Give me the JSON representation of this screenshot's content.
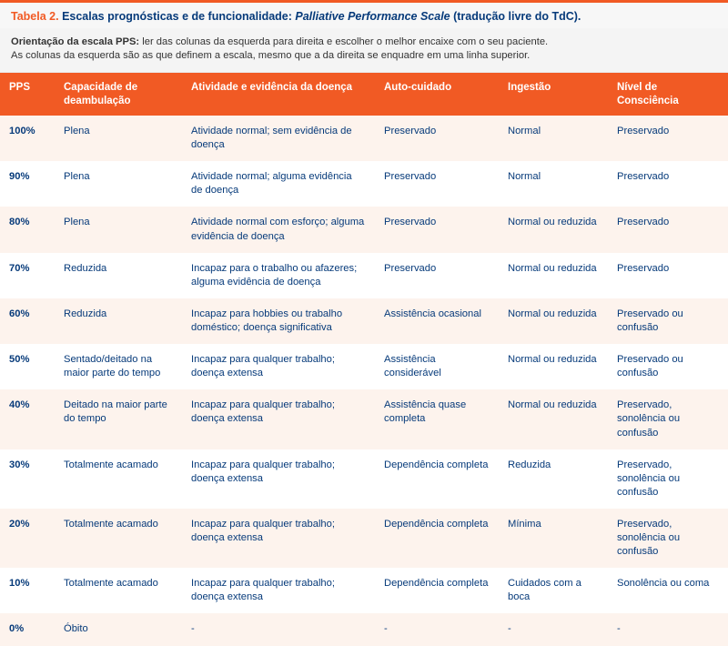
{
  "title": {
    "label": "Tabela 2.",
    "text_before_italic": "Escalas prognósticas e de funcionalidade: ",
    "italic": "Palliative Performance Scale",
    "text_after_italic": " (tradução livre do TdC)."
  },
  "note": {
    "bold": "Orientação da escala PPS:",
    "line1": " ler das colunas da esquerda para direita e escolher o melhor encaixe com o seu paciente.",
    "line2": "As colunas da esquerda são as que definem a escala, mesmo que a da direita se enquadre em uma linha superior."
  },
  "columns": [
    "PPS",
    "Capacidade de deambulação",
    "Atividade e evidência da doença",
    "Auto-cuidado",
    "Ingestão",
    "Nível de Consciência"
  ],
  "rows": [
    {
      "pps": "100%",
      "amb": "Plena",
      "act": "Atividade normal; sem evidência de doença",
      "self": "Preservado",
      "intake": "Normal",
      "consc": "Preservado"
    },
    {
      "pps": "90%",
      "amb": "Plena",
      "act": "Atividade normal; alguma evidência de doença",
      "self": "Preservado",
      "intake": "Normal",
      "consc": "Preservado"
    },
    {
      "pps": "80%",
      "amb": "Plena",
      "act": "Atividade normal com esforço; alguma evidência de doença",
      "self": "Preservado",
      "intake": "Normal ou reduzida",
      "consc": "Preservado"
    },
    {
      "pps": "70%",
      "amb": "Reduzida",
      "act": "Incapaz para o trabalho ou afazeres; alguma evidência de doença",
      "self": "Preservado",
      "intake": "Normal ou reduzida",
      "consc": "Preservado"
    },
    {
      "pps": "60%",
      "amb": "Reduzida",
      "act": "Incapaz para hobbies ou trabalho doméstico; doença significativa",
      "self": "Assistência ocasional",
      "intake": "Normal ou reduzida",
      "consc": "Preservado ou confusão"
    },
    {
      "pps": "50%",
      "amb": "Sentado/deitado na maior parte do tempo",
      "act": "Incapaz para qualquer trabalho; doença extensa",
      "self": "Assistência considerável",
      "intake": "Normal ou reduzida",
      "consc": "Preservado ou confusão"
    },
    {
      "pps": "40%",
      "amb": "Deitado na maior parte do tempo",
      "act": "Incapaz para qualquer trabalho; doença extensa",
      "self": "Assistência quase completa",
      "intake": "Normal ou reduzida",
      "consc": "Preservado, sonolência ou confusão"
    },
    {
      "pps": "30%",
      "amb": "Totalmente acamado",
      "act": "Incapaz para qualquer trabalho; doença extensa",
      "self": "Dependência completa",
      "intake": "Reduzida",
      "consc": "Preservado, sonolência ou confusão"
    },
    {
      "pps": "20%",
      "amb": "Totalmente acamado",
      "act": "Incapaz para qualquer trabalho; doença extensa",
      "self": "Dependência completa",
      "intake": "Mínima",
      "consc": "Preservado, sonolência ou confusão"
    },
    {
      "pps": "10%",
      "amb": "Totalmente acamado",
      "act": "Incapaz para qualquer trabalho; doença extensa",
      "self": "Dependência completa",
      "intake": "Cuidados com a boca",
      "consc": "Sonolência ou coma"
    },
    {
      "pps": "0%",
      "amb": "Óbito",
      "act": "-",
      "self": "-",
      "intake": "-",
      "consc": "-"
    }
  ],
  "colors": {
    "accent": "#f15a24",
    "text_primary": "#063a7a",
    "row_odd_bg": "#fdf3ed",
    "row_even_bg": "#ffffff",
    "title_bg": "#f7f7f7",
    "note_bg": "#f4f4f4"
  }
}
